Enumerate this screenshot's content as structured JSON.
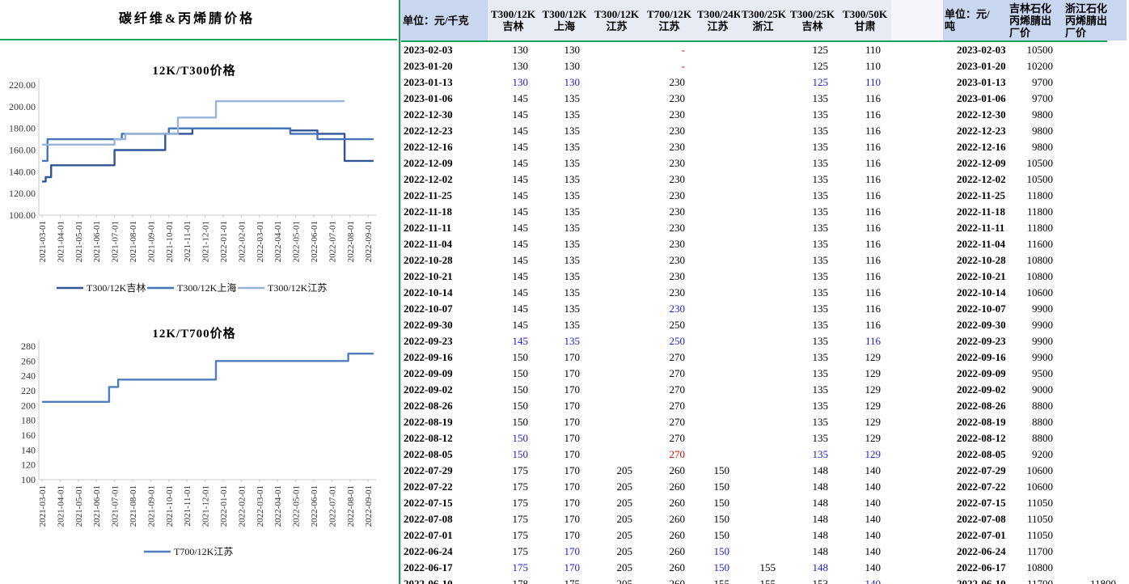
{
  "left_panel": {
    "title": "碳纤维&丙烯腈价格"
  },
  "colors": {
    "pane_divider_green": "#17a45c",
    "header_bg_dark": "#c8d6f0",
    "header_bg_light": "#e6ebf4",
    "value_blue": "#1c1cd6",
    "value_red": "#e00505",
    "series_jilin": "#2F5597",
    "series_shanghai": "#4374B9",
    "series_jiangsu": "#99B3D9",
    "series_t700": "#4F7DBE"
  },
  "chart_data": [
    {
      "type": "line",
      "title": "12K/T300价格",
      "ylim": [
        100,
        220
      ],
      "ytick_step": 20,
      "ytick_decimals": 2,
      "grid": false,
      "legend_position": "bottom",
      "x_labels": [
        "2021-03-01",
        "2021-04-01",
        "2021-05-01",
        "2021-06-01",
        "2021-07-01",
        "2021-08-01",
        "2021-09-01",
        "2021-10-01",
        "2021-11-01",
        "2021-12-01",
        "2022-01-01",
        "2022-02-01",
        "2022-03-01",
        "2022-04-01",
        "2022-05-01",
        "2022-06-01",
        "2022-07-01",
        "2022-08-01",
        "2022-09-01"
      ],
      "series": [
        {
          "name": "T300/12K吉林",
          "color": "#2F5597",
          "points": [
            [
              0,
              131
            ],
            [
              0.2,
              131
            ],
            [
              0.2,
              135
            ],
            [
              0.5,
              135
            ],
            [
              0.5,
              146
            ],
            [
              4,
              146
            ],
            [
              4,
              160
            ],
            [
              6.8,
              160
            ],
            [
              6.8,
              175
            ],
            [
              8.3,
              175
            ],
            [
              8.3,
              180
            ],
            [
              13.7,
              180
            ],
            [
              13.7,
              178
            ],
            [
              15.2,
              178
            ],
            [
              15.2,
              175
            ],
            [
              16.7,
              175
            ],
            [
              16.7,
              150
            ],
            [
              18.3,
              150
            ]
          ]
        },
        {
          "name": "T300/12K上海",
          "color": "#4374B9",
          "points": [
            [
              0,
              150
            ],
            [
              0.3,
              150
            ],
            [
              0.3,
              170
            ],
            [
              4.4,
              170
            ],
            [
              4.4,
              175
            ],
            [
              7,
              175
            ],
            [
              7,
              180
            ],
            [
              13.7,
              180
            ],
            [
              13.7,
              175
            ],
            [
              15.2,
              175
            ],
            [
              15.2,
              170
            ],
            [
              18.3,
              170
            ]
          ]
        },
        {
          "name": "T300/12K江苏",
          "color": "#99B3D9",
          "points": [
            [
              0,
              165
            ],
            [
              4,
              165
            ],
            [
              4,
              170
            ],
            [
              4.6,
              170
            ],
            [
              4.6,
              175
            ],
            [
              7.5,
              175
            ],
            [
              7.5,
              190
            ],
            [
              9.6,
              190
            ],
            [
              9.6,
              205
            ],
            [
              16.7,
              205
            ]
          ]
        }
      ]
    },
    {
      "type": "line",
      "title": "12K/T700价格",
      "ylim": [
        100,
        280
      ],
      "ytick_step": 20,
      "ytick_decimals": 0,
      "grid": false,
      "legend_position": "bottom",
      "x_labels": [
        "2021-03-01",
        "2021-04-01",
        "2021-05-01",
        "2021-06-01",
        "2021-07-01",
        "2021-08-01",
        "2021-09-01",
        "2021-10-01",
        "2021-11-01",
        "2021-12-01",
        "2022-01-01",
        "2022-02-01",
        "2022-03-01",
        "2022-04-01",
        "2022-05-01",
        "2022-06-01",
        "2022-07-01",
        "2022-08-01",
        "2022-09-01"
      ],
      "series": [
        {
          "name": "T700/12K江苏",
          "color": "#4F7DBE",
          "points": [
            [
              0,
              205
            ],
            [
              3.7,
              205
            ],
            [
              3.7,
              225
            ],
            [
              4.2,
              225
            ],
            [
              4.2,
              235
            ],
            [
              9.6,
              235
            ],
            [
              9.6,
              260
            ],
            [
              16.9,
              260
            ],
            [
              16.9,
              270
            ],
            [
              18.3,
              270
            ]
          ]
        }
      ]
    }
  ],
  "table": {
    "headers": [
      "单位：元/千克",
      "T300/12K\n吉林",
      "T300/12K\n上海",
      "T300/12K\n江苏",
      "T700/12K\n江苏",
      "T300/24K\n江苏",
      "T300/25K\n浙江",
      "T300/25K\n吉林",
      "T300/50K\n甘肃",
      "",
      "单位：元/\n吨",
      "吉林石化\n丙烯腈出\n厂价",
      "浙江石化\n丙烯腈出\n厂价"
    ],
    "rows": [
      [
        "2023-02-03",
        "130",
        "130",
        "",
        [
          "-",
          "red"
        ],
        "",
        "",
        "125",
        "110",
        "2023-02-03",
        "10500",
        ""
      ],
      [
        "2023-01-20",
        "130",
        "130",
        "",
        [
          "-",
          "red"
        ],
        "",
        "",
        "125",
        "110",
        "2023-01-20",
        "10200",
        ""
      ],
      [
        "2023-01-13",
        [
          "130",
          "blue"
        ],
        [
          "130",
          "blue"
        ],
        "",
        "230",
        "",
        "",
        [
          "125",
          "blue"
        ],
        [
          "110",
          "blue"
        ],
        "2023-01-13",
        "9700",
        ""
      ],
      [
        "2023-01-06",
        "145",
        "135",
        "",
        "230",
        "",
        "",
        "135",
        "116",
        "2023-01-06",
        "9700",
        ""
      ],
      [
        "2022-12-30",
        "145",
        "135",
        "",
        "230",
        "",
        "",
        "135",
        "116",
        "2022-12-30",
        "9800",
        ""
      ],
      [
        "2022-12-23",
        "145",
        "135",
        "",
        "230",
        "",
        "",
        "135",
        "116",
        "2022-12-23",
        "9800",
        ""
      ],
      [
        "2022-12-16",
        "145",
        "135",
        "",
        "230",
        "",
        "",
        "135",
        "116",
        "2022-12-16",
        "9800",
        ""
      ],
      [
        "2022-12-09",
        "145",
        "135",
        "",
        "230",
        "",
        "",
        "135",
        "116",
        "2022-12-09",
        "10500",
        ""
      ],
      [
        "2022-12-02",
        "145",
        "135",
        "",
        "230",
        "",
        "",
        "135",
        "116",
        "2022-12-02",
        "10500",
        ""
      ],
      [
        "2022-11-25",
        "145",
        "135",
        "",
        "230",
        "",
        "",
        "135",
        "116",
        "2022-11-25",
        "11800",
        ""
      ],
      [
        "2022-11-18",
        "145",
        "135",
        "",
        "230",
        "",
        "",
        "135",
        "116",
        "2022-11-18",
        "11800",
        ""
      ],
      [
        "2022-11-11",
        "145",
        "135",
        "",
        "230",
        "",
        "",
        "135",
        "116",
        "2022-11-11",
        "11800",
        ""
      ],
      [
        "2022-11-04",
        "145",
        "135",
        "",
        "230",
        "",
        "",
        "135",
        "116",
        "2022-11-04",
        "11600",
        ""
      ],
      [
        "2022-10-28",
        "145",
        "135",
        "",
        "230",
        "",
        "",
        "135",
        "116",
        "2022-10-28",
        "10800",
        ""
      ],
      [
        "2022-10-21",
        "145",
        "135",
        "",
        "230",
        "",
        "",
        "135",
        "116",
        "2022-10-21",
        "10800",
        ""
      ],
      [
        "2022-10-14",
        "145",
        "135",
        "",
        "230",
        "",
        "",
        "135",
        "116",
        "2022-10-14",
        "10600",
        ""
      ],
      [
        "2022-10-07",
        "145",
        "135",
        "",
        [
          "230",
          "blue"
        ],
        "",
        "",
        "135",
        "116",
        "2022-10-07",
        "9900",
        ""
      ],
      [
        "2022-09-30",
        "145",
        "135",
        "",
        "250",
        "",
        "",
        "135",
        "116",
        "2022-09-30",
        "9900",
        ""
      ],
      [
        "2022-09-23",
        [
          "145",
          "blue"
        ],
        [
          "135",
          "blue"
        ],
        "",
        [
          "250",
          "blue"
        ],
        "",
        "",
        "135",
        [
          "116",
          "blue"
        ],
        "2022-09-23",
        "9900",
        ""
      ],
      [
        "2022-09-16",
        "150",
        "170",
        "",
        "270",
        "",
        "",
        "135",
        "129",
        "2022-09-16",
        "9900",
        ""
      ],
      [
        "2022-09-09",
        "150",
        "170",
        "",
        "270",
        "",
        "",
        "135",
        "129",
        "2022-09-09",
        "9500",
        ""
      ],
      [
        "2022-09-02",
        "150",
        "170",
        "",
        "270",
        "",
        "",
        "135",
        "129",
        "2022-09-02",
        "9000",
        ""
      ],
      [
        "2022-08-26",
        "150",
        "170",
        "",
        "270",
        "",
        "",
        "135",
        "129",
        "2022-08-26",
        "8800",
        ""
      ],
      [
        "2022-08-19",
        "150",
        "170",
        "",
        "270",
        "",
        "",
        "135",
        "129",
        "2022-08-19",
        "8800",
        ""
      ],
      [
        "2022-08-12",
        [
          "150",
          "blue"
        ],
        "170",
        "",
        "270",
        "",
        "",
        "135",
        "129",
        "2022-08-12",
        "8800",
        ""
      ],
      [
        "2022-08-05",
        [
          "150",
          "blue"
        ],
        "170",
        "",
        [
          "270",
          "red"
        ],
        "",
        "",
        [
          "135",
          "blue"
        ],
        [
          "129",
          "blue"
        ],
        "2022-08-05",
        "9200",
        ""
      ],
      [
        "2022-07-29",
        "175",
        "170",
        "205",
        "260",
        "150",
        "",
        "148",
        "140",
        "2022-07-29",
        "10600",
        ""
      ],
      [
        "2022-07-22",
        "175",
        "170",
        "205",
        "260",
        "150",
        "",
        "148",
        "140",
        "2022-07-22",
        "10600",
        ""
      ],
      [
        "2022-07-15",
        "175",
        "170",
        "205",
        "260",
        "150",
        "",
        "148",
        "140",
        "2022-07-15",
        "11050",
        ""
      ],
      [
        "2022-07-08",
        "175",
        "170",
        "205",
        "260",
        "150",
        "",
        "148",
        "140",
        "2022-07-08",
        "11050",
        ""
      ],
      [
        "2022-07-01",
        "175",
        "170",
        "205",
        "260",
        "150",
        "",
        "148",
        "140",
        "2022-07-01",
        "11050",
        ""
      ],
      [
        "2022-06-24",
        "175",
        [
          "170",
          "blue"
        ],
        "205",
        "260",
        [
          "150",
          "blue"
        ],
        "",
        "148",
        "140",
        "2022-06-24",
        "11700",
        ""
      ],
      [
        "2022-06-17",
        [
          "175",
          "blue"
        ],
        [
          "170",
          "blue"
        ],
        "205",
        "260",
        [
          "150",
          "blue"
        ],
        "155",
        [
          "148",
          "blue"
        ],
        "140",
        "2022-06-17",
        "10800",
        ""
      ],
      [
        "2022-06-10",
        "178",
        "175",
        "205",
        "260",
        "155",
        "155",
        "153",
        [
          "140",
          "blue"
        ],
        "2022-06-10",
        "11700",
        "11800"
      ]
    ]
  }
}
